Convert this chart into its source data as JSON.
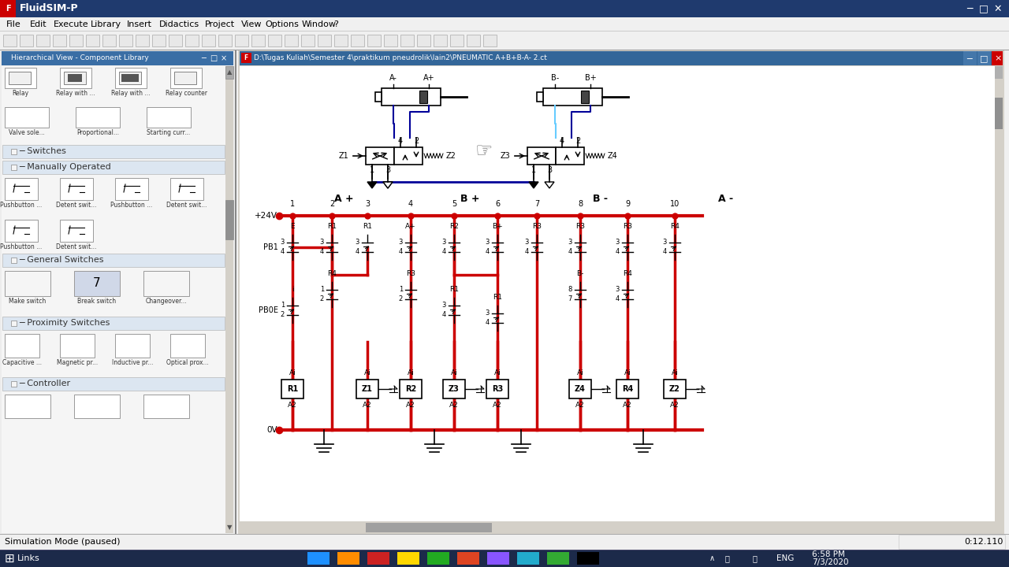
{
  "window_title": "FluidSIM-P",
  "file_path": "D:\\Tugas Kuliah\\Semester 4\\praktikum pneudrolik\\lain2\\PNEUMATIC A+B+B-A- 2.ct",
  "status_text": "Simulation Mode (paused)",
  "time_text": "0:12.110",
  "clock1": "6:58 PM",
  "clock2": "7/3/2020",
  "menus": [
    "File",
    "Edit",
    "Execute",
    "Library",
    "Insert",
    "Didactics",
    "Project",
    "View",
    "Options",
    "Window",
    "?"
  ],
  "left_panel_title": "Hierarchical View - Component Library",
  "relay_labels": [
    "Relay",
    "Relay with ...",
    "Relay with ...",
    "Relay counter"
  ],
  "valve_labels": [
    "Valve sole...",
    "Proportional...",
    "Starting curr..."
  ],
  "section_labels_left": [
    "Switches",
    "Manually Operated",
    "General Switches",
    "Proximity Switches",
    "Controller"
  ],
  "manual1_labels": [
    "Pushbutton ...",
    "Detent swit...",
    "Pushbutton ...",
    "Detent swit..."
  ],
  "manual2_labels": [
    "Pushbutton ...",
    "Detent swit..."
  ],
  "general_labels": [
    "Make switch",
    "Break switch",
    "Changeover..."
  ],
  "proximity_labels": [
    "Capacitive ...",
    "Magnetic pr...",
    "Inductive pr...",
    "Optical prox..."
  ],
  "elec_section_labels": [
    "A +",
    "B +",
    "B -",
    "A -"
  ],
  "rail_numbers": [
    "1",
    "2",
    "3",
    "4",
    "5",
    "6",
    "7",
    "8",
    "9",
    "10"
  ],
  "red": "#cc0000",
  "navy": "#000099",
  "black": "#000000",
  "white": "#ffffff",
  "bg": "#f0f0f0",
  "panel_bg": "#f5f5f5",
  "section_hdr": "#dce6f1",
  "inner_title_bg": "#336699",
  "canvas_bg": "#ffffff",
  "left_panel_title_bg": "#3a6ea5",
  "taskbar_bg": "#1c2a4a",
  "title_bar_bg": "#1f3a6e"
}
